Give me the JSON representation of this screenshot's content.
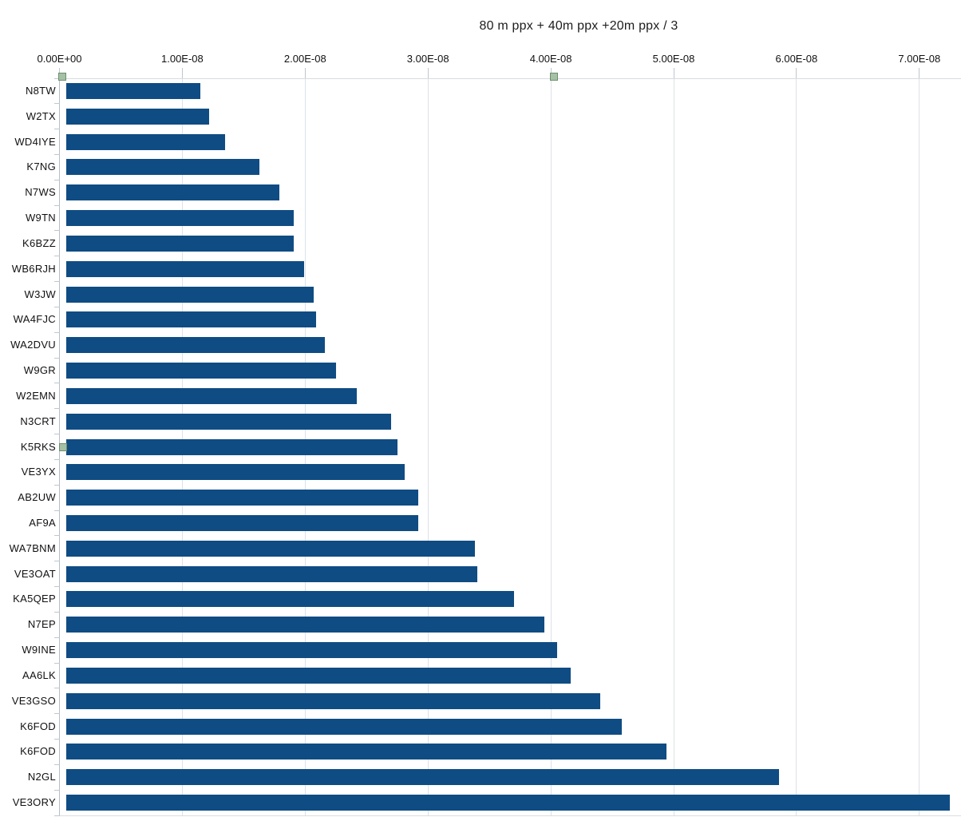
{
  "title": "80 m ppx + 40m ppx +20m ppx / 3",
  "chart_data": {
    "type": "bar",
    "orientation": "horizontal",
    "title": "80 m ppx + 40m ppx +20m ppx / 3",
    "categories": [
      "N8TW",
      "W2TX",
      "WD4IYE",
      "K7NG",
      "N7WS",
      "W9TN",
      "K6BZZ",
      "WB6RJH",
      "W3JW",
      "WA4FJC",
      "WA2DVU",
      "W9GR",
      "W2EMN",
      "N3CRT",
      "K5RKS",
      "VE3YX",
      "AB2UW",
      "AF9A",
      "WA7BNM",
      "VE3OAT",
      "KA5QEP",
      "N7EP",
      "W9INE",
      "AA6LK",
      "VE3GSO",
      "K6FOD",
      "K6FOD",
      "N2GL",
      "VE3ORY"
    ],
    "values": [
      1.15e-08,
      1.22e-08,
      1.35e-08,
      1.63e-08,
      1.79e-08,
      1.91e-08,
      1.91e-08,
      1.99e-08,
      2.07e-08,
      2.09e-08,
      2.16e-08,
      2.25e-08,
      2.42e-08,
      2.7e-08,
      2.75e-08,
      2.81e-08,
      2.92e-08,
      2.92e-08,
      3.38e-08,
      3.4e-08,
      3.7e-08,
      3.95e-08,
      4.05e-08,
      4.16e-08,
      4.4e-08,
      4.58e-08,
      4.94e-08,
      5.86e-08,
      7.25e-08
    ],
    "x_tick_labels": [
      "0.00E+00",
      "1.00E-08",
      "2.00E-08",
      "3.00E-08",
      "4.00E-08",
      "5.00E-08",
      "6.00E-08",
      "7.00E-08"
    ],
    "x_tick_values": [
      0,
      1e-08,
      2e-08,
      3e-08,
      4e-08,
      5e-08,
      6e-08,
      7e-08
    ],
    "xlim": [
      0,
      7.34e-08
    ],
    "xlabel": "",
    "ylabel": "",
    "grid": "vertical-gridlines-on",
    "legend_position": "none",
    "colors": {
      "bar": "#0f4c83",
      "gridline": "#dde1e6",
      "axis": "#b5bdc6",
      "tick": "#bfc7cf",
      "text": "#111111",
      "background": "#ffffff"
    }
  },
  "selection_handles": [
    {
      "label": "selection-handle-axis-zero-top",
      "edge": "top",
      "tick": 0
    },
    {
      "label": "selection-handle-4e-08-top",
      "edge": "top",
      "tick": 4e-08
    },
    {
      "label": "selection-handle-k5rks",
      "edge": "left",
      "category": "K5RKS"
    }
  ],
  "handle_style": {
    "fill": "#a5c0a5",
    "border": "#6b8f6b"
  }
}
